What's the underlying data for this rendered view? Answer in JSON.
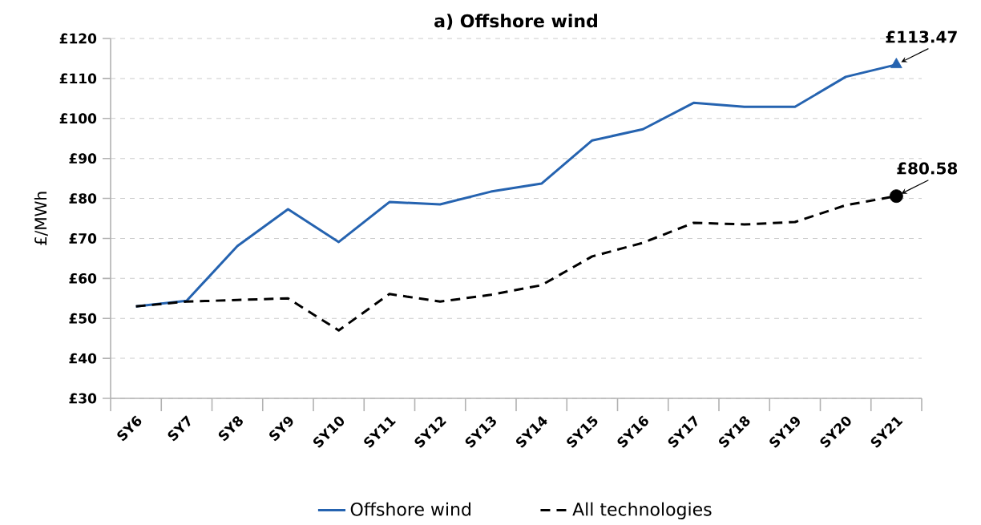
{
  "chart_data": {
    "type": "line",
    "title": "a) Offshore wind",
    "ylabel": "£/MWh",
    "categories": [
      "SY6",
      "SY7",
      "SY8",
      "SY9",
      "SY10",
      "SY11",
      "SY12",
      "SY13",
      "SY14",
      "SY15",
      "SY16",
      "SY17",
      "SY18",
      "SY19",
      "SY20",
      "SY21"
    ],
    "series": [
      {
        "name": "Offshore wind",
        "color": "#2563b0",
        "line_style": "solid",
        "values": [
          53.0,
          54.4,
          68.1,
          77.3,
          69.1,
          79.1,
          78.5,
          81.7,
          83.7,
          94.5,
          97.3,
          103.9,
          102.9,
          102.9,
          110.4,
          113.47
        ]
      },
      {
        "name": "All technologies",
        "color": "#000000",
        "line_style": "dashed",
        "values": [
          53.0,
          54.2,
          54.6,
          55.0,
          47.0,
          56.1,
          54.2,
          55.9,
          58.3,
          65.5,
          68.9,
          73.9,
          73.5,
          74.1,
          78.3,
          80.58
        ]
      }
    ],
    "ylim": [
      30,
      120
    ],
    "yticks": [
      {
        "value": 30,
        "label": "£30"
      },
      {
        "value": 40,
        "label": "£40"
      },
      {
        "value": 50,
        "label": "£50"
      },
      {
        "value": 60,
        "label": "£60"
      },
      {
        "value": 70,
        "label": "£70"
      },
      {
        "value": 80,
        "label": "£80"
      },
      {
        "value": 90,
        "label": "£90"
      },
      {
        "value": 100,
        "label": "£100"
      },
      {
        "value": 110,
        "label": "£110"
      },
      {
        "value": 120,
        "label": "£120"
      }
    ],
    "grid": "y",
    "legend": "bottom",
    "annotations": [
      {
        "text": "£113.47",
        "x": "SY21",
        "y": 113.47
      },
      {
        "text": "£80.58",
        "x": "SY21",
        "y": 80.58
      }
    ]
  }
}
